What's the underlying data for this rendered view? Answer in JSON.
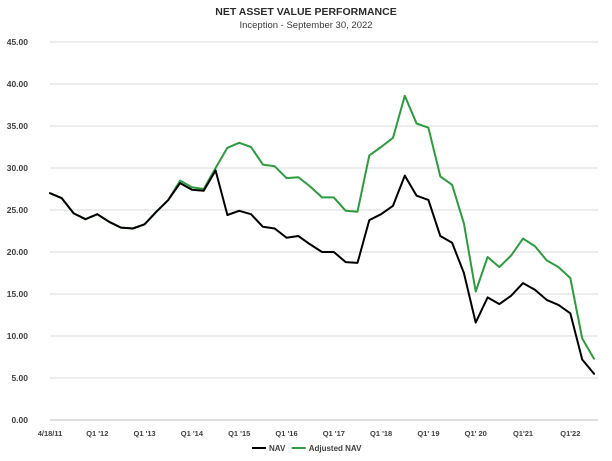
{
  "chart_data": {
    "type": "line",
    "title": "NET ASSET VALUE PERFORMANCE",
    "subtitle": "Inception - September 30, 2022",
    "xlabel": "",
    "ylabel": "",
    "ylim": [
      0,
      45
    ],
    "yticks": [
      "0.00",
      "5.00",
      "10.00",
      "15.00",
      "20.00",
      "25.00",
      "30.00",
      "35.00",
      "40.00",
      "45.00"
    ],
    "grid": true,
    "legend": "bottom-center",
    "x_tick_labels": [
      {
        "i": 0,
        "label": "4/18/11"
      },
      {
        "i": 4,
        "label": "Q1 '12"
      },
      {
        "i": 8,
        "label": "Q1 '13"
      },
      {
        "i": 12,
        "label": "Q1 '14"
      },
      {
        "i": 16,
        "label": "Q1 '15"
      },
      {
        "i": 20,
        "label": "Q1 '16"
      },
      {
        "i": 24,
        "label": "Q1 '17"
      },
      {
        "i": 28,
        "label": "Q1 '18"
      },
      {
        "i": 32,
        "label": "Q1' 19"
      },
      {
        "i": 36,
        "label": "Q1' 20"
      },
      {
        "i": 40,
        "label": "Q1'21"
      },
      {
        "i": 44,
        "label": "Q1'22"
      }
    ],
    "series": [
      {
        "name": "NAV",
        "color": "#000000",
        "values": [
          27.0,
          26.4,
          24.6,
          23.9,
          24.5,
          23.6,
          22.9,
          22.8,
          23.3,
          24.8,
          26.2,
          28.2,
          27.4,
          27.3,
          29.7,
          24.4,
          24.9,
          24.5,
          23.0,
          22.8,
          21.7,
          21.9,
          20.9,
          20.0,
          20.0,
          18.8,
          18.7,
          23.8,
          24.5,
          25.5,
          29.1,
          26.7,
          26.2,
          21.9,
          21.1,
          17.5,
          11.6,
          14.6,
          13.8,
          14.8,
          16.3,
          15.5,
          14.3,
          13.7,
          12.7,
          7.2,
          5.5
        ]
      },
      {
        "name": "Adjusted NAV",
        "color": "#2e9b3f",
        "values": [
          27.0,
          26.4,
          24.6,
          23.9,
          24.5,
          23.6,
          22.9,
          22.8,
          23.3,
          24.8,
          26.2,
          28.5,
          27.7,
          27.5,
          30.0,
          32.4,
          33.0,
          32.5,
          30.4,
          30.2,
          28.8,
          28.9,
          27.8,
          26.5,
          26.5,
          24.9,
          24.8,
          31.5,
          32.5,
          33.6,
          38.6,
          35.3,
          34.8,
          29.0,
          28.0,
          23.4,
          15.3,
          19.4,
          18.2,
          19.6,
          21.6,
          20.7,
          19.0,
          18.2,
          16.9,
          9.7,
          7.3
        ]
      }
    ]
  }
}
